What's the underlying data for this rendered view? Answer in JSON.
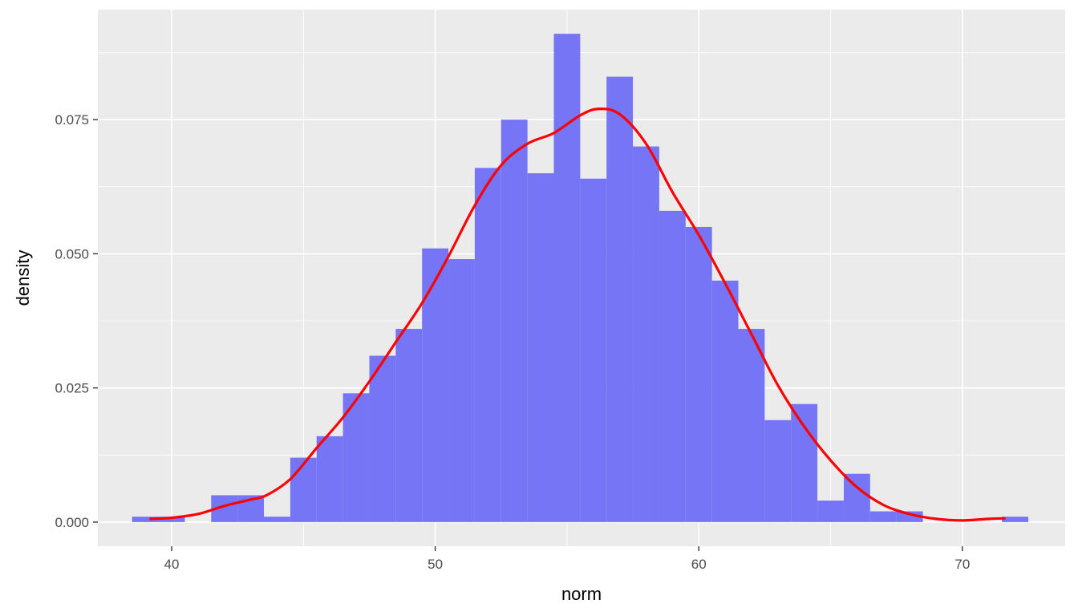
{
  "chart_data": {
    "type": "bar",
    "subtype": "histogram with density curve",
    "title": "",
    "xlabel": "norm",
    "ylabel": "density",
    "xlim": [
      37.2,
      73.9
    ],
    "ylim": [
      -0.0045,
      0.0955
    ],
    "x_ticks": [
      40,
      50,
      60,
      70
    ],
    "y_ticks": [
      0.0,
      0.025,
      0.05,
      0.075
    ],
    "x_tick_labels": [
      "40",
      "50",
      "60",
      "70"
    ],
    "y_tick_labels": [
      "0.000",
      "0.025",
      "0.050",
      "0.075"
    ],
    "grid": true,
    "legend": "none",
    "bin_width": 1,
    "bins": [
      {
        "x0": 38.5,
        "x1": 39.5,
        "density": 0.001
      },
      {
        "x0": 39.5,
        "x1": 40.5,
        "density": 0.001
      },
      {
        "x0": 40.5,
        "x1": 41.5,
        "density": 0.0
      },
      {
        "x0": 41.5,
        "x1": 42.5,
        "density": 0.005
      },
      {
        "x0": 42.5,
        "x1": 43.5,
        "density": 0.005
      },
      {
        "x0": 43.5,
        "x1": 44.5,
        "density": 0.001
      },
      {
        "x0": 44.5,
        "x1": 45.5,
        "density": 0.012
      },
      {
        "x0": 45.5,
        "x1": 46.5,
        "density": 0.016
      },
      {
        "x0": 46.5,
        "x1": 47.5,
        "density": 0.024
      },
      {
        "x0": 47.5,
        "x1": 48.5,
        "density": 0.031
      },
      {
        "x0": 48.5,
        "x1": 49.5,
        "density": 0.036
      },
      {
        "x0": 49.5,
        "x1": 50.5,
        "density": 0.051
      },
      {
        "x0": 50.5,
        "x1": 51.5,
        "density": 0.049
      },
      {
        "x0": 51.5,
        "x1": 52.5,
        "density": 0.066
      },
      {
        "x0": 52.5,
        "x1": 53.5,
        "density": 0.075
      },
      {
        "x0": 53.5,
        "x1": 54.5,
        "density": 0.065
      },
      {
        "x0": 54.5,
        "x1": 55.5,
        "density": 0.091
      },
      {
        "x0": 55.5,
        "x1": 56.5,
        "density": 0.064
      },
      {
        "x0": 56.5,
        "x1": 57.5,
        "density": 0.083
      },
      {
        "x0": 57.5,
        "x1": 58.5,
        "density": 0.07
      },
      {
        "x0": 58.5,
        "x1": 59.5,
        "density": 0.058
      },
      {
        "x0": 59.5,
        "x1": 60.5,
        "density": 0.055
      },
      {
        "x0": 60.5,
        "x1": 61.5,
        "density": 0.045
      },
      {
        "x0": 61.5,
        "x1": 62.5,
        "density": 0.036
      },
      {
        "x0": 62.5,
        "x1": 63.5,
        "density": 0.019
      },
      {
        "x0": 63.5,
        "x1": 64.5,
        "density": 0.022
      },
      {
        "x0": 64.5,
        "x1": 65.5,
        "density": 0.004
      },
      {
        "x0": 65.5,
        "x1": 66.5,
        "density": 0.009
      },
      {
        "x0": 66.5,
        "x1": 67.5,
        "density": 0.002
      },
      {
        "x0": 67.5,
        "x1": 68.5,
        "density": 0.002
      },
      {
        "x0": 68.5,
        "x1": 69.5,
        "density": 0.0
      },
      {
        "x0": 69.5,
        "x1": 70.5,
        "density": 0.0
      },
      {
        "x0": 70.5,
        "x1": 71.5,
        "density": 0.0
      },
      {
        "x0": 71.5,
        "x1": 72.5,
        "density": 0.001
      }
    ],
    "density_curve": [
      {
        "x": 39.2,
        "y": 0.0006
      },
      {
        "x": 40.0,
        "y": 0.0008
      },
      {
        "x": 41.0,
        "y": 0.0015
      },
      {
        "x": 42.0,
        "y": 0.003
      },
      {
        "x": 43.0,
        "y": 0.0042
      },
      {
        "x": 43.6,
        "y": 0.005
      },
      {
        "x": 44.5,
        "y": 0.008
      },
      {
        "x": 45.5,
        "y": 0.0138
      },
      {
        "x": 46.5,
        "y": 0.0195
      },
      {
        "x": 47.5,
        "y": 0.0262
      },
      {
        "x": 48.5,
        "y": 0.0335
      },
      {
        "x": 49.5,
        "y": 0.0408
      },
      {
        "x": 50.5,
        "y": 0.0495
      },
      {
        "x": 51.5,
        "y": 0.059
      },
      {
        "x": 52.5,
        "y": 0.0665
      },
      {
        "x": 53.5,
        "y": 0.0705
      },
      {
        "x": 54.5,
        "y": 0.0725
      },
      {
        "x": 55.5,
        "y": 0.0758
      },
      {
        "x": 56.2,
        "y": 0.077
      },
      {
        "x": 57.0,
        "y": 0.076
      },
      {
        "x": 58.0,
        "y": 0.0705
      },
      {
        "x": 59.0,
        "y": 0.0615
      },
      {
        "x": 60.0,
        "y": 0.0535
      },
      {
        "x": 61.0,
        "y": 0.0445
      },
      {
        "x": 62.0,
        "y": 0.035
      },
      {
        "x": 63.0,
        "y": 0.0255
      },
      {
        "x": 64.0,
        "y": 0.0178
      },
      {
        "x": 65.0,
        "y": 0.0115
      },
      {
        "x": 66.0,
        "y": 0.0065
      },
      {
        "x": 67.0,
        "y": 0.0032
      },
      {
        "x": 68.0,
        "y": 0.0015
      },
      {
        "x": 69.0,
        "y": 0.0006
      },
      {
        "x": 70.0,
        "y": 0.0003
      },
      {
        "x": 71.0,
        "y": 0.0006
      },
      {
        "x": 71.6,
        "y": 0.0007
      }
    ],
    "colors": {
      "panel_background": "#ebebeb",
      "grid_major": "#ffffff",
      "bar_fill": "#7575f5",
      "density_line": "#ff0000"
    }
  }
}
